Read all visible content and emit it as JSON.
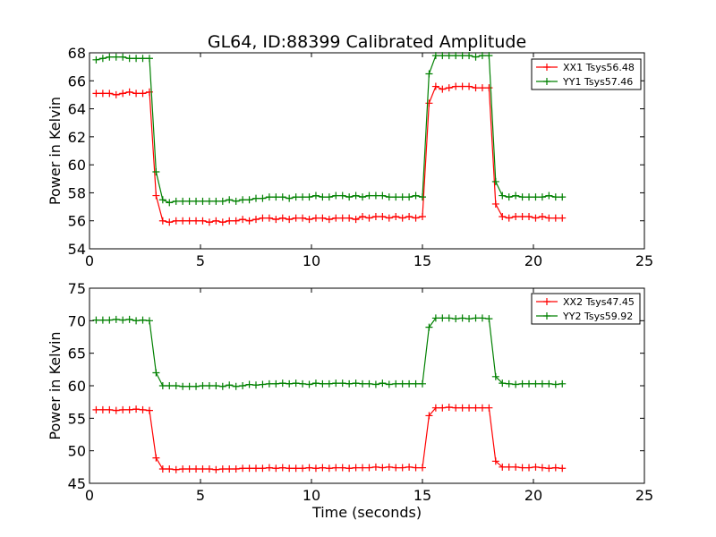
{
  "figure": {
    "title": "GL64, ID:88399 Calibrated Amplitude",
    "xlabel": "Time (seconds)"
  },
  "chart_data": [
    {
      "type": "line",
      "ylabel": "Power in Kelvin",
      "xlim": [
        0,
        25
      ],
      "ylim": [
        54,
        68
      ],
      "xticks": [
        0,
        5,
        10,
        15,
        20,
        25
      ],
      "yticks": [
        54,
        56,
        58,
        60,
        62,
        64,
        66,
        68
      ],
      "legend_position": "top-right",
      "x": [
        0.3,
        0.6,
        0.9,
        1.2,
        1.5,
        1.8,
        2.1,
        2.4,
        2.7,
        3.0,
        3.3,
        3.6,
        3.9,
        4.2,
        4.5,
        4.8,
        5.1,
        5.4,
        5.7,
        6.0,
        6.3,
        6.6,
        6.9,
        7.2,
        7.5,
        7.8,
        8.1,
        8.4,
        8.7,
        9.0,
        9.3,
        9.6,
        9.9,
        10.2,
        10.5,
        10.8,
        11.1,
        11.4,
        11.7,
        12.0,
        12.3,
        12.6,
        12.9,
        13.2,
        13.5,
        13.8,
        14.1,
        14.4,
        14.7,
        15.0,
        15.3,
        15.6,
        15.9,
        16.2,
        16.5,
        16.8,
        17.1,
        17.4,
        17.7,
        18.0,
        18.3,
        18.6,
        18.9,
        19.2,
        19.5,
        19.8,
        20.1,
        20.4,
        20.7,
        21.0,
        21.3
      ],
      "series": [
        {
          "name": "XX1 Tsys56.48",
          "color": "#ff0000",
          "values": [
            65.1,
            65.1,
            65.1,
            65.0,
            65.1,
            65.2,
            65.1,
            65.1,
            65.2,
            57.8,
            56.0,
            55.9,
            56.0,
            56.0,
            56.0,
            56.0,
            56.0,
            55.9,
            56.0,
            55.9,
            56.0,
            56.0,
            56.1,
            56.0,
            56.1,
            56.2,
            56.2,
            56.1,
            56.2,
            56.1,
            56.2,
            56.2,
            56.1,
            56.2,
            56.2,
            56.1,
            56.2,
            56.2,
            56.2,
            56.1,
            56.3,
            56.2,
            56.3,
            56.3,
            56.2,
            56.3,
            56.2,
            56.3,
            56.2,
            56.3,
            64.4,
            65.6,
            65.4,
            65.5,
            65.6,
            65.6,
            65.6,
            65.5,
            65.5,
            65.5,
            57.2,
            56.3,
            56.2,
            56.3,
            56.3,
            56.3,
            56.2,
            56.3,
            56.2,
            56.2,
            56.2
          ]
        },
        {
          "name": "YY1 Tsys57.46",
          "color": "#008000",
          "values": [
            67.5,
            67.6,
            67.7,
            67.7,
            67.7,
            67.6,
            67.6,
            67.6,
            67.6,
            59.5,
            57.5,
            57.3,
            57.4,
            57.4,
            57.4,
            57.4,
            57.4,
            57.4,
            57.4,
            57.4,
            57.5,
            57.4,
            57.5,
            57.5,
            57.6,
            57.6,
            57.7,
            57.7,
            57.7,
            57.6,
            57.7,
            57.7,
            57.7,
            57.8,
            57.7,
            57.7,
            57.8,
            57.8,
            57.7,
            57.8,
            57.7,
            57.8,
            57.8,
            57.8,
            57.7,
            57.7,
            57.7,
            57.7,
            57.8,
            57.7,
            66.5,
            67.8,
            67.8,
            67.8,
            67.8,
            67.8,
            67.8,
            67.7,
            67.8,
            67.8,
            58.8,
            57.8,
            57.7,
            57.8,
            57.7,
            57.7,
            57.7,
            57.7,
            57.8,
            57.7,
            57.7
          ]
        }
      ]
    },
    {
      "type": "line",
      "ylabel": "Power in Kelvin",
      "xlim": [
        0,
        25
      ],
      "ylim": [
        45,
        75
      ],
      "xticks": [
        0,
        5,
        10,
        15,
        20,
        25
      ],
      "yticks": [
        45,
        50,
        55,
        60,
        65,
        70,
        75
      ],
      "legend_position": "top-right",
      "x": [
        0.3,
        0.6,
        0.9,
        1.2,
        1.5,
        1.8,
        2.1,
        2.4,
        2.7,
        3.0,
        3.3,
        3.6,
        3.9,
        4.2,
        4.5,
        4.8,
        5.1,
        5.4,
        5.7,
        6.0,
        6.3,
        6.6,
        6.9,
        7.2,
        7.5,
        7.8,
        8.1,
        8.4,
        8.7,
        9.0,
        9.3,
        9.6,
        9.9,
        10.2,
        10.5,
        10.8,
        11.1,
        11.4,
        11.7,
        12.0,
        12.3,
        12.6,
        12.9,
        13.2,
        13.5,
        13.8,
        14.1,
        14.4,
        14.7,
        15.0,
        15.3,
        15.6,
        15.9,
        16.2,
        16.5,
        16.8,
        17.1,
        17.4,
        17.7,
        18.0,
        18.3,
        18.6,
        18.9,
        19.2,
        19.5,
        19.8,
        20.1,
        20.4,
        20.7,
        21.0,
        21.3
      ],
      "series": [
        {
          "name": "XX2 Tsys47.45",
          "color": "#ff0000",
          "values": [
            56.3,
            56.3,
            56.3,
            56.2,
            56.3,
            56.3,
            56.4,
            56.3,
            56.2,
            48.9,
            47.2,
            47.2,
            47.1,
            47.2,
            47.2,
            47.2,
            47.2,
            47.2,
            47.1,
            47.2,
            47.2,
            47.2,
            47.3,
            47.3,
            47.3,
            47.3,
            47.4,
            47.3,
            47.4,
            47.3,
            47.3,
            47.3,
            47.4,
            47.3,
            47.4,
            47.3,
            47.4,
            47.4,
            47.3,
            47.4,
            47.4,
            47.4,
            47.5,
            47.4,
            47.5,
            47.4,
            47.4,
            47.5,
            47.4,
            47.4,
            55.4,
            56.6,
            56.6,
            56.7,
            56.6,
            56.6,
            56.6,
            56.6,
            56.6,
            56.6,
            48.4,
            47.5,
            47.5,
            47.5,
            47.4,
            47.4,
            47.5,
            47.4,
            47.3,
            47.4,
            47.3
          ]
        },
        {
          "name": "YY2 Tsys59.92",
          "color": "#008000",
          "values": [
            70.1,
            70.1,
            70.1,
            70.2,
            70.1,
            70.2,
            70.0,
            70.1,
            70.0,
            62.0,
            60.0,
            60.0,
            60.0,
            59.9,
            59.9,
            59.9,
            60.0,
            60.0,
            60.0,
            59.9,
            60.1,
            59.9,
            60.0,
            60.2,
            60.1,
            60.2,
            60.3,
            60.3,
            60.4,
            60.3,
            60.4,
            60.3,
            60.2,
            60.4,
            60.3,
            60.3,
            60.4,
            60.4,
            60.3,
            60.4,
            60.3,
            60.3,
            60.2,
            60.4,
            60.2,
            60.3,
            60.3,
            60.3,
            60.3,
            60.3,
            69.0,
            70.4,
            70.4,
            70.4,
            70.3,
            70.4,
            70.3,
            70.4,
            70.4,
            70.3,
            61.4,
            60.4,
            60.3,
            60.2,
            60.3,
            60.3,
            60.3,
            60.3,
            60.3,
            60.2,
            60.3
          ]
        }
      ]
    }
  ]
}
